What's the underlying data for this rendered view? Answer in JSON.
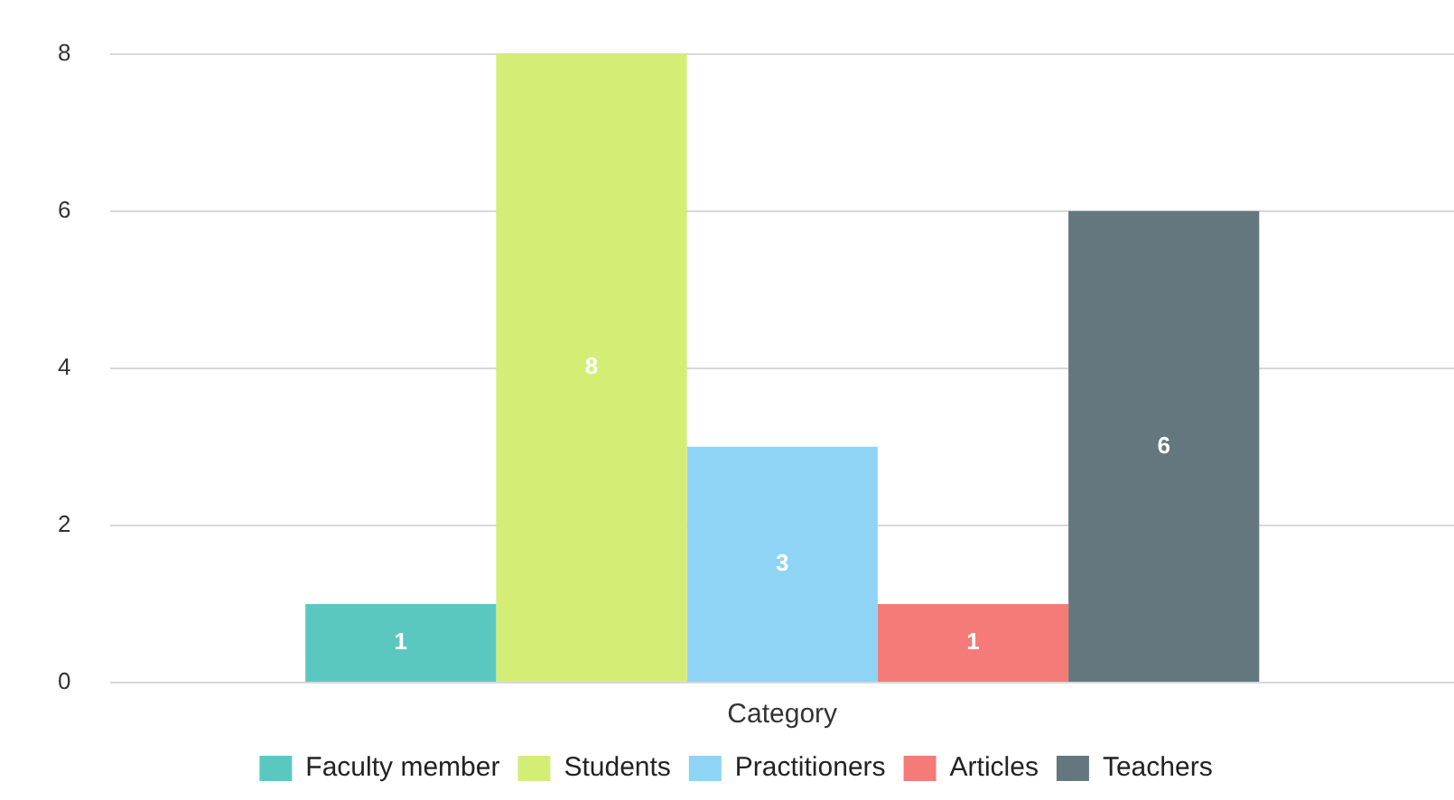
{
  "chart_data": {
    "type": "bar",
    "categories": [
      "Category"
    ],
    "series": [
      {
        "name": "Faculty member",
        "color": "#5bc8c0",
        "values": [
          1
        ]
      },
      {
        "name": "Students",
        "color": "#d4ee75",
        "values": [
          8
        ]
      },
      {
        "name": "Practitioners",
        "color": "#8fd3f5",
        "values": [
          3
        ]
      },
      {
        "name": "Articles",
        "color": "#f47b77",
        "values": [
          1
        ]
      },
      {
        "name": "Teachers",
        "color": "#64777f",
        "values": [
          6
        ]
      }
    ],
    "ylim": [
      0,
      8
    ],
    "yticks": [
      0,
      2,
      4,
      6,
      8
    ],
    "grid": "y",
    "legend": "bottom",
    "data_labels": true
  }
}
